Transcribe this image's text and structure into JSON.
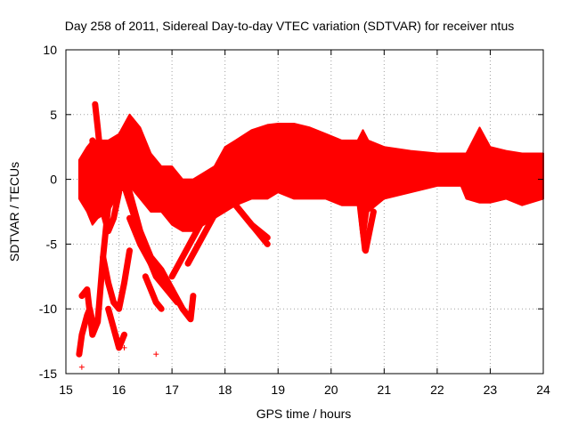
{
  "chart_data": {
    "type": "scatter",
    "title": "Day 258 of 2011, Sidereal Day-to-day VTEC variation (SDTVAR) for receiver ntus",
    "xlabel": "GPS time / hours",
    "ylabel": "SDTVAR / TECUs",
    "xlim": [
      15,
      24
    ],
    "ylim": [
      -15,
      10
    ],
    "x_ticks": [
      "15",
      "16",
      "17",
      "18",
      "19",
      "20",
      "21",
      "22",
      "23",
      "24"
    ],
    "y_ticks": [
      "-15",
      "-10",
      "-5",
      "0",
      "5",
      "10"
    ],
    "grid": true,
    "marker": "+",
    "color": "#ff0000",
    "band": {
      "x": [
        15.25,
        15.4,
        15.5,
        15.6,
        15.8,
        16.0,
        16.2,
        16.4,
        16.6,
        16.8,
        17.0,
        17.2,
        17.4,
        17.6,
        17.8,
        18.0,
        18.2,
        18.5,
        18.8,
        19.0,
        19.3,
        19.6,
        19.9,
        20.2,
        20.5,
        20.6,
        20.7,
        21.0,
        21.5,
        22.0,
        22.45,
        22.55,
        22.8,
        23.0,
        23.3,
        23.6,
        24.0
      ],
      "upper": [
        1.5,
        2.5,
        3.0,
        3.0,
        3.0,
        3.5,
        5.0,
        4.0,
        2.0,
        1.0,
        1.0,
        0.0,
        0.0,
        0.5,
        1.0,
        2.5,
        3.0,
        3.8,
        4.2,
        4.3,
        4.3,
        4.0,
        3.5,
        3.0,
        3.0,
        3.8,
        3.0,
        2.5,
        2.2,
        2.0,
        2.0,
        2.0,
        4.0,
        2.5,
        2.2,
        2.0,
        2.0
      ],
      "lower": [
        -1.5,
        -2.5,
        -3.5,
        -3.0,
        -2.5,
        -1.0,
        -0.5,
        -1.5,
        -2.5,
        -2.5,
        -3.5,
        -4.0,
        -4.0,
        -3.5,
        -3.0,
        -2.5,
        -2.0,
        -1.5,
        -1.5,
        -1.0,
        -1.5,
        -1.5,
        -1.5,
        -2.0,
        -2.0,
        -5.5,
        -2.5,
        -1.5,
        -1.0,
        -0.5,
        -0.5,
        -1.5,
        -1.8,
        -1.8,
        -1.5,
        -2.0,
        -1.5
      ]
    },
    "tracks": [
      {
        "x": [
          15.25,
          15.3,
          15.4,
          15.45,
          15.5
        ],
        "y": [
          -13.5,
          -12.0,
          -10.5,
          -10.0,
          -11.0
        ]
      },
      {
        "x": [
          15.3,
          15.4,
          15.5,
          15.6,
          15.7,
          15.8
        ],
        "y": [
          -9.0,
          -8.5,
          -12.0,
          -11.0,
          -6.0,
          -2.0
        ]
      },
      {
        "x": [
          15.5,
          15.6,
          15.7,
          15.8,
          15.9,
          16.0
        ],
        "y": [
          3.0,
          0.5,
          -2.5,
          -4.0,
          -3.0,
          -1.0
        ]
      },
      {
        "x": [
          15.55,
          15.6,
          15.65,
          15.7
        ],
        "y": [
          5.8,
          4.0,
          2.0,
          0.0
        ]
      },
      {
        "x": [
          15.7,
          15.8,
          15.9,
          16.0,
          16.1,
          16.2
        ],
        "y": [
          -6.0,
          -8.0,
          -9.5,
          -10.0,
          -8.0,
          -5.5
        ]
      },
      {
        "x": [
          15.8,
          15.9,
          16.0,
          16.1
        ],
        "y": [
          -10.0,
          -11.5,
          -13.0,
          -12.0
        ]
      },
      {
        "x": [
          16.0,
          16.2,
          16.4,
          16.6,
          16.8,
          17.0
        ],
        "y": [
          1.5,
          -1.0,
          -4.0,
          -6.0,
          -7.0,
          -8.5
        ]
      },
      {
        "x": [
          16.1,
          16.3,
          16.5,
          16.7,
          16.9,
          17.1
        ],
        "y": [
          -0.5,
          -3.0,
          -5.5,
          -7.5,
          -8.5,
          -9.5
        ]
      },
      {
        "x": [
          16.2,
          16.4,
          16.6,
          16.8,
          17.0,
          17.2,
          17.35,
          17.4
        ],
        "y": [
          -3.0,
          -5.0,
          -6.5,
          -7.5,
          -8.5,
          -10.0,
          -10.8,
          -9.0
        ]
      },
      {
        "x": [
          16.5,
          16.6,
          16.7,
          16.8
        ],
        "y": [
          -7.5,
          -8.5,
          -9.5,
          -10.0
        ]
      },
      {
        "x": [
          17.0,
          17.2,
          17.4,
          17.6,
          17.8,
          18.0,
          18.2,
          18.5,
          18.8
        ],
        "y": [
          -7.5,
          -6.0,
          -4.5,
          -3.0,
          -2.0,
          -1.0,
          -2.0,
          -3.5,
          -4.5
        ]
      },
      {
        "x": [
          17.3,
          17.5,
          17.7,
          17.9
        ],
        "y": [
          -6.5,
          -5.0,
          -3.5,
          -2.0
        ]
      },
      {
        "x": [
          18.2,
          18.4,
          18.6,
          18.8
        ],
        "y": [
          -2.0,
          -3.0,
          -4.0,
          -5.0
        ]
      },
      {
        "x": [
          20.55,
          20.6,
          20.65,
          20.7,
          20.8
        ],
        "y": [
          -2.0,
          -4.0,
          -5.5,
          -4.5,
          -2.5
        ]
      }
    ],
    "outliers": {
      "x": [
        16.7,
        15.3,
        16.1
      ],
      "y": [
        -13.5,
        -14.5,
        -13.0
      ]
    }
  }
}
